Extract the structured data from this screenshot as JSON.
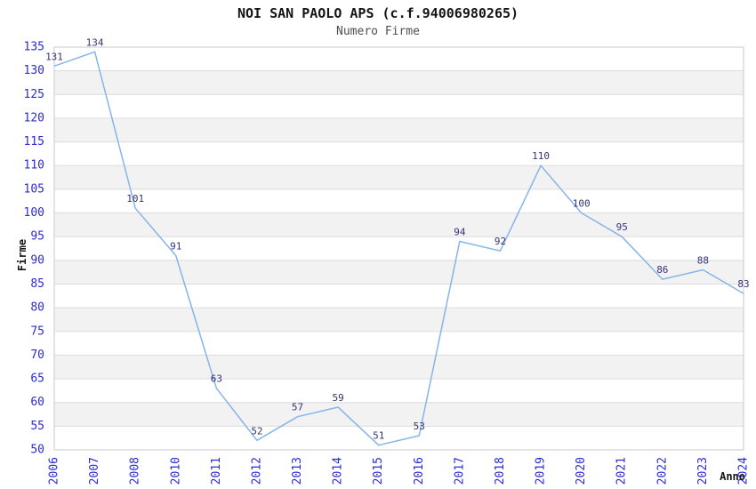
{
  "header": {
    "title": "NOI SAN PAOLO APS (c.f.94006980265)",
    "subtitle": "Numero Firme"
  },
  "chart_data": {
    "type": "line",
    "title": "NOI SAN PAOLO APS (c.f.94006980265)",
    "subtitle": "Numero Firme",
    "xlabel": "Anno",
    "ylabel": "Firme",
    "categories": [
      "2006",
      "2007",
      "2008",
      "2010",
      "2011",
      "2012",
      "2013",
      "2014",
      "2015",
      "2016",
      "2017",
      "2018",
      "2019",
      "2020",
      "2021",
      "2022",
      "2023",
      "2024"
    ],
    "values": [
      131,
      134,
      101,
      91,
      63,
      52,
      57,
      59,
      51,
      53,
      94,
      92,
      110,
      100,
      95,
      86,
      88,
      83
    ],
    "point_labels": [
      "131",
      "134",
      "101",
      "91",
      "63",
      "52",
      "57",
      "59",
      "51",
      "53",
      "94",
      "92",
      "110",
      "100",
      "95",
      "86",
      "88",
      "83"
    ],
    "ylim": [
      50,
      135
    ],
    "ytick_step": 5,
    "grid": "horizontal-bands",
    "legend": "none",
    "colors": {
      "line": "#85b5e8",
      "tick_label": "#2b2bd5",
      "point_label": "#333377",
      "band": "#f2f2f2",
      "gridline": "#dcdcdc",
      "border": "#c9c9c9",
      "title": "#141414",
      "subtitle": "#4f4f4f",
      "axis_title": "#141414"
    }
  }
}
